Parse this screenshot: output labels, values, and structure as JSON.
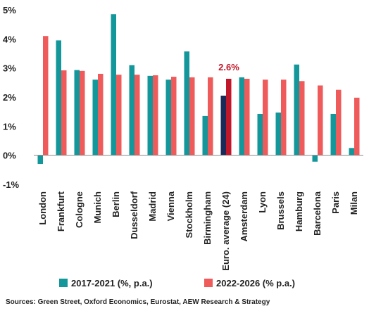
{
  "chart_data": {
    "type": "bar",
    "categories": [
      "London",
      "Frankfurt",
      "Cologne",
      "Munich",
      "Berlin",
      "Dusseldorf",
      "Madrid",
      "Vienna",
      "Stockholm",
      "Birmingham",
      "Euro. average (24)",
      "Amsterdam",
      "Lyon",
      "Brussels",
      "Hamburg",
      "Barcelona",
      "Paris",
      "Milan"
    ],
    "series": [
      {
        "name": "2017-2021 (%, p.a.)",
        "color": "#13979a",
        "highlight_color": "#1a2b5a",
        "values": [
          -0.3,
          3.95,
          2.93,
          2.6,
          4.85,
          3.1,
          2.73,
          2.6,
          3.57,
          1.35,
          2.05,
          2.68,
          1.42,
          1.47,
          3.12,
          -0.22,
          1.42,
          0.25
        ]
      },
      {
        "name": "2022-2026 (% p.a.)",
        "color": "#ef5b5b",
        "highlight_color": "#c0182a",
        "values": [
          4.1,
          2.92,
          2.9,
          2.8,
          2.77,
          2.77,
          2.75,
          2.7,
          2.68,
          2.68,
          2.63,
          2.63,
          2.6,
          2.6,
          2.55,
          2.4,
          2.25,
          1.98
        ]
      }
    ],
    "highlight_index": 10,
    "annotation": {
      "text": "2.6%",
      "color": "#c0182a"
    },
    "ylim": [
      -1,
      5
    ],
    "yticks": [
      "-1%",
      "0%",
      "1%",
      "2%",
      "3%",
      "4%",
      "5%"
    ],
    "grid": false,
    "legend_placement": "bottom"
  },
  "source": "Sources: Green Street, Oxford Economics, Eurostat, AEW Research & Strategy"
}
